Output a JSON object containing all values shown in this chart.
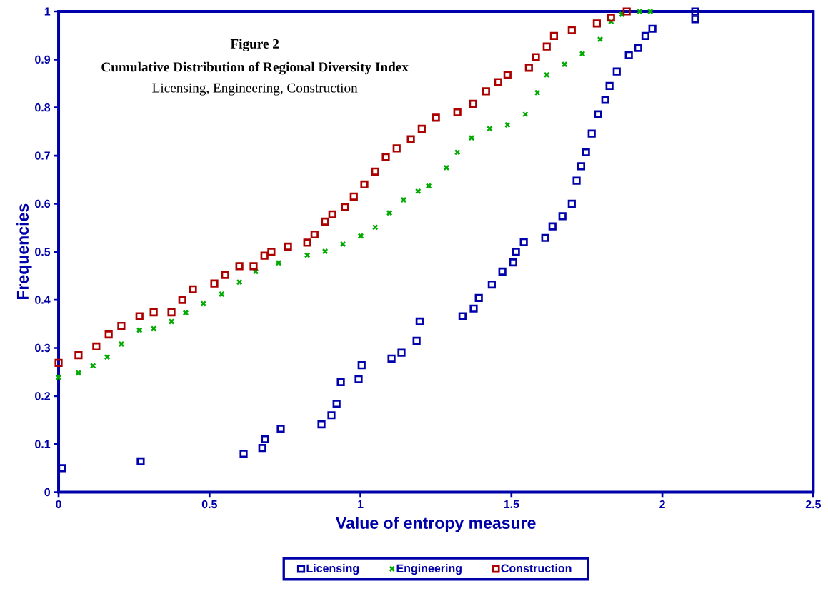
{
  "chart_data": {
    "type": "scatter",
    "title": "Figure 2",
    "subtitle": "Cumulative Distribution of Regional Diversity Index",
    "annotations": [
      "Licensing, Engineering, Construction"
    ],
    "xlabel": "Value of entropy measure",
    "ylabel": "Frequencies",
    "xlim": [
      0,
      2.5
    ],
    "ylim": [
      0,
      1
    ],
    "xticks": [
      0,
      0.5,
      1,
      1.5,
      2,
      2.5
    ],
    "yticks": [
      0,
      0.1,
      0.2,
      0.3,
      0.4,
      0.5,
      0.6,
      0.7,
      0.8,
      0.9,
      1
    ],
    "legend": "bottom",
    "series": [
      {
        "name": "Licensing",
        "color": "#0000aa",
        "marker": "square",
        "x": [
          0.012,
          0.272,
          0.613,
          0.675,
          0.684,
          0.736,
          0.871,
          0.904,
          0.921,
          0.935,
          0.994,
          1.004,
          1.103,
          1.136,
          1.186,
          1.196,
          1.338,
          1.375,
          1.392,
          1.435,
          1.47,
          1.506,
          1.515,
          1.541,
          1.612,
          1.636,
          1.669,
          1.7,
          1.716,
          1.731,
          1.747,
          1.766,
          1.787,
          1.811,
          1.825,
          1.849,
          1.889,
          1.92,
          1.944,
          1.967,
          2.109,
          2.109
        ],
        "values": [
          0.05,
          0.064,
          0.08,
          0.092,
          0.11,
          0.132,
          0.141,
          0.16,
          0.184,
          0.229,
          0.235,
          0.264,
          0.278,
          0.29,
          0.315,
          0.355,
          0.366,
          0.382,
          0.404,
          0.432,
          0.459,
          0.478,
          0.5,
          0.52,
          0.529,
          0.553,
          0.574,
          0.6,
          0.648,
          0.678,
          0.707,
          0.746,
          0.786,
          0.816,
          0.845,
          0.875,
          0.909,
          0.924,
          0.949,
          0.964,
          0.984,
          1.0
        ]
      },
      {
        "name": "Engineering",
        "color": "#00aa00",
        "marker": "cross",
        "x": [
          0.0,
          0.066,
          0.114,
          0.161,
          0.208,
          0.268,
          0.315,
          0.374,
          0.421,
          0.48,
          0.54,
          0.599,
          0.653,
          0.729,
          0.824,
          0.883,
          0.942,
          1.001,
          1.049,
          1.096,
          1.143,
          1.191,
          1.226,
          1.285,
          1.321,
          1.368,
          1.428,
          1.487,
          1.546,
          1.586,
          1.617,
          1.676,
          1.735,
          1.794,
          1.83,
          1.866,
          1.925,
          1.96
        ],
        "values": [
          0.239,
          0.248,
          0.263,
          0.281,
          0.308,
          0.337,
          0.34,
          0.355,
          0.373,
          0.392,
          0.412,
          0.437,
          0.459,
          0.477,
          0.493,
          0.501,
          0.516,
          0.533,
          0.551,
          0.581,
          0.608,
          0.626,
          0.637,
          0.675,
          0.707,
          0.737,
          0.756,
          0.764,
          0.786,
          0.831,
          0.868,
          0.89,
          0.912,
          0.942,
          0.979,
          0.994,
          1.0,
          1.0
        ]
      },
      {
        "name": "Construction",
        "color": "#aa0000",
        "marker": "square",
        "x": [
          0.0,
          0.066,
          0.125,
          0.166,
          0.208,
          0.268,
          0.315,
          0.374,
          0.41,
          0.445,
          0.516,
          0.552,
          0.599,
          0.646,
          0.682,
          0.705,
          0.76,
          0.824,
          0.848,
          0.883,
          0.907,
          0.949,
          0.978,
          1.013,
          1.049,
          1.084,
          1.12,
          1.167,
          1.203,
          1.25,
          1.321,
          1.373,
          1.416,
          1.456,
          1.487,
          1.558,
          1.581,
          1.617,
          1.641,
          1.7,
          1.783,
          1.83,
          1.882
        ],
        "values": [
          0.269,
          0.285,
          0.303,
          0.328,
          0.346,
          0.366,
          0.374,
          0.374,
          0.4,
          0.422,
          0.434,
          0.452,
          0.47,
          0.47,
          0.492,
          0.5,
          0.511,
          0.519,
          0.536,
          0.563,
          0.578,
          0.593,
          0.615,
          0.64,
          0.667,
          0.697,
          0.715,
          0.734,
          0.756,
          0.779,
          0.79,
          0.808,
          0.834,
          0.853,
          0.868,
          0.883,
          0.905,
          0.927,
          0.949,
          0.961,
          0.975,
          0.987,
          1.0
        ]
      }
    ]
  }
}
